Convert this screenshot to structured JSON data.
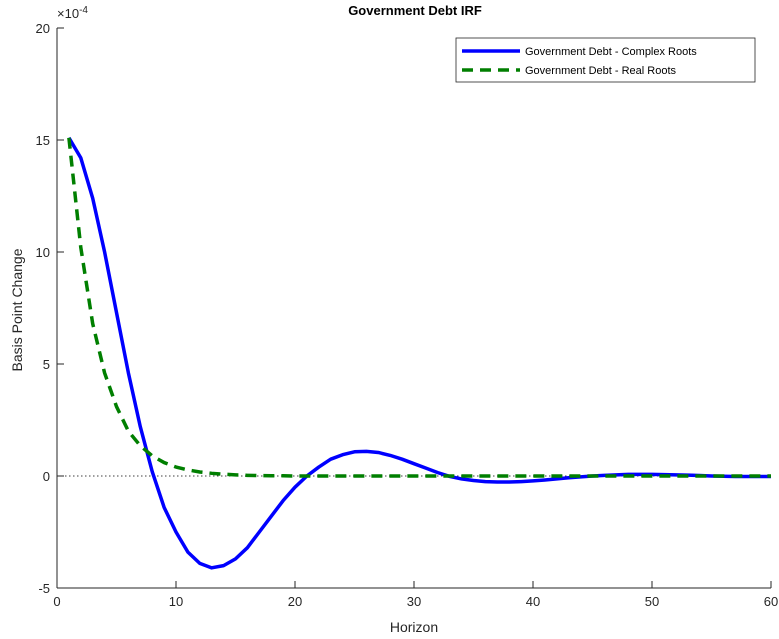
{
  "chart_data": {
    "type": "line",
    "title": "Government Debt IRF",
    "xlabel": "Horizon",
    "ylabel": "Basis Point Change",
    "xlim": [
      0,
      60
    ],
    "ylim": [
      -5,
      20
    ],
    "y_exponent_label": "×10",
    "y_exponent_power": "-4",
    "y_scale_factor": 0.0001,
    "xticks": [
      0,
      10,
      20,
      30,
      40,
      50,
      60
    ],
    "yticks": [
      -5,
      0,
      5,
      10,
      15,
      20
    ],
    "grid": false,
    "legend_position": "top-right",
    "zero_line": true,
    "series": [
      {
        "name": "Government Debt - Complex Roots",
        "color": "#0000ff",
        "style": "solid",
        "x": [
          1,
          2,
          3,
          4,
          5,
          6,
          7,
          8,
          9,
          10,
          11,
          12,
          13,
          14,
          15,
          16,
          17,
          18,
          19,
          20,
          21,
          22,
          23,
          24,
          25,
          26,
          27,
          28,
          29,
          30,
          31,
          32,
          33,
          34,
          35,
          36,
          37,
          38,
          39,
          40,
          41,
          42,
          43,
          44,
          45,
          46,
          47,
          48,
          49,
          50,
          51,
          52,
          53,
          54,
          55,
          56,
          57,
          58,
          59,
          60
        ],
        "values": [
          15.1,
          14.2,
          12.4,
          10.0,
          7.3,
          4.6,
          2.2,
          0.2,
          -1.4,
          -2.5,
          -3.4,
          -3.9,
          -4.1,
          -4.0,
          -3.7,
          -3.2,
          -2.5,
          -1.8,
          -1.1,
          -0.5,
          0.0,
          0.4,
          0.75,
          0.95,
          1.08,
          1.1,
          1.05,
          0.92,
          0.75,
          0.55,
          0.35,
          0.15,
          -0.02,
          -0.13,
          -0.2,
          -0.25,
          -0.27,
          -0.27,
          -0.25,
          -0.22,
          -0.18,
          -0.13,
          -0.08,
          -0.04,
          0.0,
          0.03,
          0.05,
          0.07,
          0.07,
          0.07,
          0.06,
          0.05,
          0.04,
          0.02,
          0.0,
          -0.01,
          -0.02,
          -0.02,
          -0.02,
          -0.02
        ]
      },
      {
        "name": "Government Debt - Real Roots",
        "color": "#007f00",
        "style": "dashed",
        "x": [
          1,
          2,
          3,
          4,
          5,
          6,
          7,
          8,
          9,
          10,
          11,
          12,
          13,
          14,
          15,
          16,
          17,
          18,
          19,
          20,
          21,
          22,
          23,
          24,
          25,
          26,
          27,
          28,
          29,
          30,
          31,
          32,
          33,
          34,
          35,
          36,
          37,
          38,
          39,
          40,
          41,
          42,
          43,
          44,
          45,
          46,
          47,
          48,
          49,
          50,
          51,
          52,
          53,
          54,
          55,
          56,
          57,
          58,
          59,
          60
        ],
        "values": [
          15.1,
          10.2,
          6.8,
          4.6,
          3.1,
          2.0,
          1.35,
          0.9,
          0.6,
          0.4,
          0.27,
          0.18,
          0.12,
          0.08,
          0.05,
          0.03,
          0.02,
          0.01,
          0.01,
          0.0,
          0.0,
          0.0,
          0.0,
          0.0,
          0.0,
          0.0,
          0.0,
          0.0,
          0.0,
          0.0,
          0.0,
          0.0,
          0.0,
          0.0,
          0.0,
          0.0,
          0.0,
          0.0,
          0.0,
          0.0,
          0.0,
          0.0,
          0.0,
          0.0,
          0.0,
          0.0,
          0.0,
          0.0,
          0.0,
          0.0,
          0.0,
          0.0,
          0.0,
          0.0,
          0.0,
          0.0,
          0.0,
          0.0,
          0.0,
          0.0
        ]
      }
    ]
  }
}
